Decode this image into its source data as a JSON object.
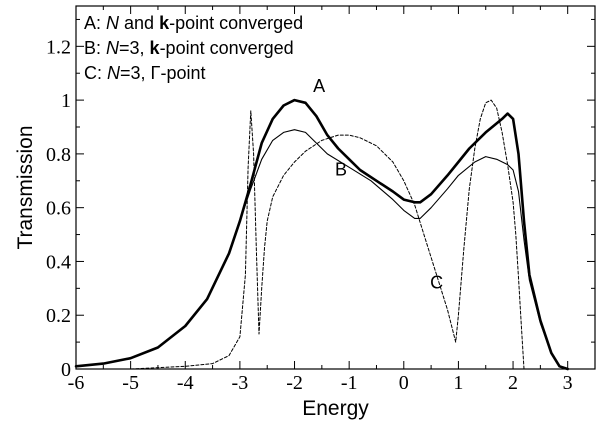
{
  "chart_data": {
    "type": "line",
    "title": "",
    "xlabel": "Energy",
    "ylabel": "Transmission",
    "xlim": [
      -6,
      3.5
    ],
    "ylim": [
      0,
      1.35
    ],
    "xticks": [
      -6,
      -5,
      -4,
      -3,
      -2,
      -1,
      0,
      1,
      2,
      3
    ],
    "xtick_labels": [
      "-6",
      "-5",
      "-4",
      "-3",
      "-2",
      "-1",
      "0",
      "1",
      "2",
      "3"
    ],
    "yticks": [
      0,
      0.2,
      0.4,
      0.6,
      0.8,
      1.0,
      1.2
    ],
    "ytick_labels": [
      "0",
      "0.2",
      "0.4",
      "0.6",
      "0.8",
      "1",
      "1.2"
    ],
    "grid": false,
    "legend_placement": "top-left",
    "legend": [
      {
        "key": "A",
        "parts": [
          {
            "text": "A: ",
            "style": "normal"
          },
          {
            "text": "N",
            "style": "italic"
          },
          {
            "text": " and ",
            "style": "normal"
          },
          {
            "text": "k",
            "style": "bold"
          },
          {
            "text": "-point converged",
            "style": "normal"
          }
        ]
      },
      {
        "key": "B",
        "parts": [
          {
            "text": "B: ",
            "style": "normal"
          },
          {
            "text": "N",
            "style": "italic"
          },
          {
            "text": "=3, ",
            "style": "normal"
          },
          {
            "text": "k",
            "style": "bold"
          },
          {
            "text": "-point converged",
            "style": "normal"
          }
        ]
      },
      {
        "key": "C",
        "parts": [
          {
            "text": "C: ",
            "style": "normal"
          },
          {
            "text": "N",
            "style": "italic"
          },
          {
            "text": "=3, ",
            "style": "normal"
          },
          {
            "text": "Γ",
            "style": "normal"
          },
          {
            "text": "-point",
            "style": "normal"
          }
        ]
      }
    ],
    "series": [
      {
        "name": "A",
        "style": "thick",
        "label": {
          "text": "A",
          "x": -1.55,
          "y": 1.03
        },
        "x": [
          -6.0,
          -5.5,
          -5.0,
          -4.5,
          -4.0,
          -3.6,
          -3.2,
          -3.0,
          -2.8,
          -2.6,
          -2.4,
          -2.2,
          -2.0,
          -1.8,
          -1.6,
          -1.4,
          -1.2,
          -1.0,
          -0.8,
          -0.5,
          -0.2,
          0.0,
          0.2,
          0.3,
          0.5,
          0.8,
          1.0,
          1.2,
          1.5,
          1.8,
          1.9,
          2.0,
          2.1,
          2.2,
          2.3,
          2.5,
          2.7,
          2.85,
          3.0
        ],
        "y": [
          0.01,
          0.02,
          0.04,
          0.08,
          0.16,
          0.26,
          0.43,
          0.55,
          0.69,
          0.84,
          0.93,
          0.98,
          1.0,
          0.99,
          0.94,
          0.87,
          0.82,
          0.78,
          0.74,
          0.7,
          0.66,
          0.63,
          0.62,
          0.62,
          0.65,
          0.72,
          0.77,
          0.82,
          0.88,
          0.93,
          0.95,
          0.93,
          0.8,
          0.55,
          0.35,
          0.18,
          0.06,
          0.01,
          0.0
        ]
      },
      {
        "name": "B",
        "style": "thin",
        "label": {
          "text": "B",
          "x": -1.15,
          "y": 0.72
        },
        "x": [
          -6.0,
          -5.5,
          -5.0,
          -4.5,
          -4.0,
          -3.6,
          -3.2,
          -3.0,
          -2.8,
          -2.6,
          -2.4,
          -2.2,
          -2.0,
          -1.8,
          -1.6,
          -1.4,
          -1.0,
          -0.6,
          -0.2,
          0.0,
          0.2,
          0.3,
          0.5,
          0.8,
          1.0,
          1.3,
          1.5,
          1.7,
          1.9,
          2.0,
          2.1,
          2.2,
          2.3,
          2.5,
          2.7,
          2.85,
          3.0
        ],
        "y": [
          0.01,
          0.02,
          0.04,
          0.08,
          0.16,
          0.26,
          0.43,
          0.55,
          0.67,
          0.78,
          0.85,
          0.88,
          0.89,
          0.88,
          0.84,
          0.8,
          0.75,
          0.7,
          0.63,
          0.59,
          0.56,
          0.56,
          0.6,
          0.67,
          0.72,
          0.77,
          0.79,
          0.78,
          0.76,
          0.74,
          0.66,
          0.48,
          0.33,
          0.17,
          0.06,
          0.01,
          0.0
        ]
      },
      {
        "name": "C",
        "style": "dashed",
        "label": {
          "text": "C",
          "x": 0.6,
          "y": 0.3
        },
        "x": [
          -6.0,
          -5.0,
          -4.0,
          -3.5,
          -3.2,
          -3.0,
          -2.9,
          -2.85,
          -2.8,
          -2.75,
          -2.7,
          -2.65,
          -2.6,
          -2.55,
          -2.5,
          -2.4,
          -2.2,
          -2.0,
          -1.8,
          -1.5,
          -1.2,
          -1.0,
          -0.8,
          -0.5,
          -0.2,
          0.0,
          0.2,
          0.4,
          0.6,
          0.8,
          0.9,
          0.95,
          1.0,
          1.1,
          1.2,
          1.3,
          1.4,
          1.5,
          1.6,
          1.7,
          1.8,
          1.9,
          2.0,
          2.05,
          2.1,
          2.15,
          2.2
        ],
        "y": [
          0.0,
          0.0,
          0.01,
          0.02,
          0.05,
          0.12,
          0.35,
          0.75,
          0.96,
          0.8,
          0.45,
          0.13,
          0.3,
          0.45,
          0.55,
          0.64,
          0.72,
          0.77,
          0.81,
          0.85,
          0.87,
          0.87,
          0.86,
          0.83,
          0.77,
          0.7,
          0.61,
          0.48,
          0.35,
          0.22,
          0.14,
          0.1,
          0.2,
          0.45,
          0.67,
          0.82,
          0.93,
          0.99,
          1.0,
          0.97,
          0.88,
          0.76,
          0.62,
          0.5,
          0.34,
          0.17,
          0.0
        ]
      }
    ]
  }
}
